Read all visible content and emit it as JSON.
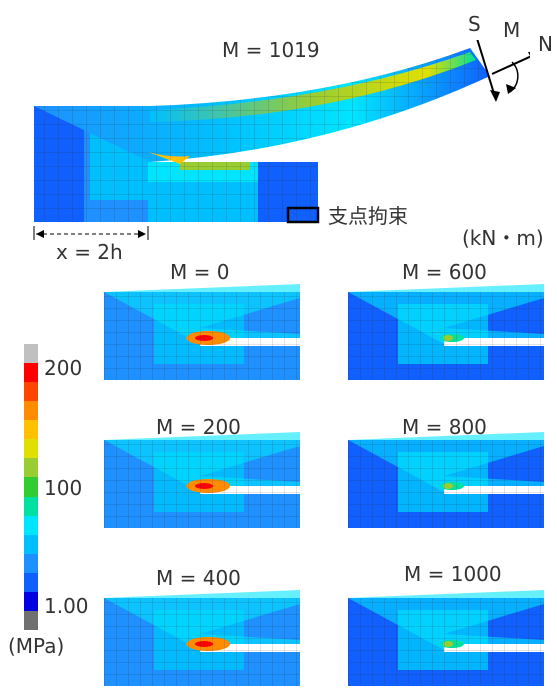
{
  "main": {
    "title": "M = 1019",
    "support_label": "支点拘束",
    "units": "(kN・m)",
    "dimension_label": "x = 2h",
    "axis_labels": {
      "s": "S",
      "m": "M",
      "n": "N"
    }
  },
  "panels": [
    {
      "label": "M = 0"
    },
    {
      "label": "M = 600"
    },
    {
      "label": "M = 200"
    },
    {
      "label": "M = 800"
    },
    {
      "label": "M = 400"
    },
    {
      "label": "M = 1000"
    }
  ],
  "colorbar": {
    "ticks": [
      "200",
      "100",
      "1.00"
    ],
    "unit": "(MPa)",
    "colors": [
      "#c0c0c0",
      "#ff0000",
      "#ff4500",
      "#ff8c00",
      "#ffc000",
      "#e0e000",
      "#9acd32",
      "#32cd32",
      "#00e0a0",
      "#00e5ff",
      "#00bfff",
      "#1e90ff",
      "#1060ff",
      "#0000e0",
      "#707070"
    ]
  }
}
